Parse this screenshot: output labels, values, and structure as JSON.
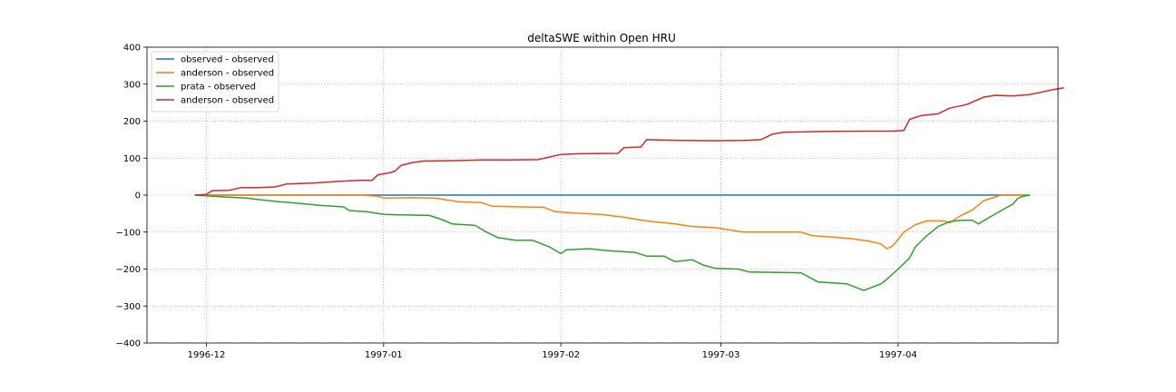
{
  "chart_data": {
    "type": "line",
    "title": "deltaSWE within Open HRU",
    "xlabel": "",
    "ylabel": "",
    "x_axis": {
      "type": "date",
      "range": [
        "1996-11-18",
        "1997-04-30"
      ],
      "ticks": [
        "1996-12-01",
        "1997-01-01",
        "1997-02-01",
        "1997-03-01",
        "1997-04-01"
      ],
      "tick_labels": [
        "1996-12",
        "1997-01",
        "1997-02",
        "1997-03",
        "1997-04"
      ]
    },
    "ylim": [
      -400,
      400
    ],
    "y_ticks": [
      -400,
      -300,
      -200,
      -100,
      0,
      100,
      200,
      300,
      400
    ],
    "y_tick_labels": [
      "−400",
      "−300",
      "−200",
      "−100",
      "0",
      "100",
      "200",
      "300",
      "400"
    ],
    "grid": true,
    "legend_position": "top-left",
    "series": [
      {
        "name": "observed - observed",
        "color": "#1f77b4",
        "points": [
          [
            "1996-11-29",
            0
          ],
          [
            "1997-04-23",
            0
          ]
        ]
      },
      {
        "name": "anderson - observed",
        "color": "#ff7f0e",
        "points": [
          [
            "1996-11-29",
            0
          ],
          [
            "1996-12-20",
            0
          ],
          [
            "1996-12-28",
            0
          ],
          [
            "1996-12-31",
            -3
          ],
          [
            "1997-01-01",
            -8
          ],
          [
            "1997-01-06",
            -7
          ],
          [
            "1997-01-10",
            -8
          ],
          [
            "1997-01-14",
            -18
          ],
          [
            "1997-01-18",
            -20
          ],
          [
            "1997-01-20",
            -30
          ],
          [
            "1997-01-25",
            -32
          ],
          [
            "1997-01-29",
            -33
          ],
          [
            "1997-01-31",
            -45
          ],
          [
            "1997-02-03",
            -48
          ],
          [
            "1997-02-08",
            -52
          ],
          [
            "1997-02-12",
            -60
          ],
          [
            "1997-02-16",
            -70
          ],
          [
            "1997-02-21",
            -78
          ],
          [
            "1997-02-24",
            -85
          ],
          [
            "1997-02-28",
            -88
          ],
          [
            "1997-03-02",
            -93
          ],
          [
            "1997-03-05",
            -100
          ],
          [
            "1997-03-15",
            -100
          ],
          [
            "1997-03-17",
            -110
          ],
          [
            "1997-03-20",
            -113
          ],
          [
            "1997-03-24",
            -118
          ],
          [
            "1997-03-27",
            -125
          ],
          [
            "1997-03-29",
            -132
          ],
          [
            "1997-03-30",
            -145
          ],
          [
            "1997-03-31",
            -138
          ],
          [
            "1997-04-01",
            -120
          ],
          [
            "1997-04-02",
            -100
          ],
          [
            "1997-04-04",
            -80
          ],
          [
            "1997-04-06",
            -70
          ],
          [
            "1997-04-09",
            -70
          ],
          [
            "1997-04-10",
            -75
          ],
          [
            "1997-04-12",
            -55
          ],
          [
            "1997-04-14",
            -40
          ],
          [
            "1997-04-16",
            -15
          ],
          [
            "1997-04-18",
            -5
          ],
          [
            "1997-04-19",
            0
          ],
          [
            "1997-04-23",
            0
          ]
        ]
      },
      {
        "name": "prata - observed",
        "color": "#2ca02c",
        "points": [
          [
            "1996-11-29",
            0
          ],
          [
            "1996-12-01",
            -2
          ],
          [
            "1996-12-04",
            -5
          ],
          [
            "1996-12-08",
            -8
          ],
          [
            "1996-12-10",
            -12
          ],
          [
            "1996-12-13",
            -17
          ],
          [
            "1996-12-17",
            -22
          ],
          [
            "1996-12-21",
            -28
          ],
          [
            "1996-12-25",
            -32
          ],
          [
            "1996-12-26",
            -42
          ],
          [
            "1996-12-29",
            -45
          ],
          [
            "1997-01-01",
            -52
          ],
          [
            "1997-01-03",
            -53
          ],
          [
            "1997-01-09",
            -55
          ],
          [
            "1997-01-11",
            -65
          ],
          [
            "1997-01-13",
            -78
          ],
          [
            "1997-01-17",
            -82
          ],
          [
            "1997-01-19",
            -100
          ],
          [
            "1997-01-21",
            -115
          ],
          [
            "1997-01-24",
            -122
          ],
          [
            "1997-01-27",
            -122
          ],
          [
            "1997-01-30",
            -140
          ],
          [
            "1997-02-01",
            -158
          ],
          [
            "1997-02-02",
            -148
          ],
          [
            "1997-02-06",
            -145
          ],
          [
            "1997-02-09",
            -150
          ],
          [
            "1997-02-14",
            -155
          ],
          [
            "1997-02-16",
            -165
          ],
          [
            "1997-02-19",
            -165
          ],
          [
            "1997-02-21",
            -180
          ],
          [
            "1997-02-24",
            -175
          ],
          [
            "1997-02-26",
            -190
          ],
          [
            "1997-02-28",
            -198
          ],
          [
            "1997-03-04",
            -200
          ],
          [
            "1997-03-06",
            -208
          ],
          [
            "1997-03-15",
            -210
          ],
          [
            "1997-03-18",
            -235
          ],
          [
            "1997-03-23",
            -240
          ],
          [
            "1997-03-26",
            -258
          ],
          [
            "1997-03-29",
            -240
          ],
          [
            "1997-03-30",
            -228
          ],
          [
            "1997-04-01",
            -200
          ],
          [
            "1997-04-03",
            -170
          ],
          [
            "1997-04-04",
            -140
          ],
          [
            "1997-04-06",
            -110
          ],
          [
            "1997-04-08",
            -85
          ],
          [
            "1997-04-10",
            -72
          ],
          [
            "1997-04-12",
            -68
          ],
          [
            "1997-04-14",
            -68
          ],
          [
            "1997-04-15",
            -78
          ],
          [
            "1997-04-17",
            -60
          ],
          [
            "1997-04-19",
            -42
          ],
          [
            "1997-04-21",
            -25
          ],
          [
            "1997-04-22",
            -8
          ],
          [
            "1997-04-23",
            -3
          ],
          [
            "1997-04-24",
            0
          ],
          [
            "1997-04-23",
            0
          ]
        ]
      },
      {
        "name": "anderson - observed",
        "color": "#d62728",
        "points": [
          [
            "1996-11-29",
            0
          ],
          [
            "1996-12-01",
            2
          ],
          [
            "1996-12-02",
            12
          ],
          [
            "1996-12-05",
            13
          ],
          [
            "1996-12-07",
            20
          ],
          [
            "1996-12-10",
            20
          ],
          [
            "1996-12-13",
            22
          ],
          [
            "1996-12-15",
            30
          ],
          [
            "1996-12-20",
            33
          ],
          [
            "1996-12-24",
            37
          ],
          [
            "1996-12-28",
            40
          ],
          [
            "1996-12-30",
            40
          ],
          [
            "1996-12-31",
            55
          ],
          [
            "1997-01-02",
            60
          ],
          [
            "1997-01-03",
            65
          ],
          [
            "1997-01-04",
            80
          ],
          [
            "1997-01-06",
            88
          ],
          [
            "1997-01-08",
            92
          ],
          [
            "1997-01-13",
            93
          ],
          [
            "1997-01-18",
            95
          ],
          [
            "1997-01-23",
            95
          ],
          [
            "1997-01-28",
            96
          ],
          [
            "1997-02-01",
            110
          ],
          [
            "1997-02-04",
            112
          ],
          [
            "1997-02-11",
            113
          ],
          [
            "1997-02-12",
            128
          ],
          [
            "1997-02-15",
            130
          ],
          [
            "1997-02-16",
            150
          ],
          [
            "1997-02-22",
            148
          ],
          [
            "1997-02-28",
            147
          ],
          [
            "1997-03-05",
            148
          ],
          [
            "1997-03-08",
            150
          ],
          [
            "1997-03-10",
            165
          ],
          [
            "1997-03-12",
            170
          ],
          [
            "1997-03-19",
            172
          ],
          [
            "1997-03-26",
            173
          ],
          [
            "1997-03-31",
            173
          ],
          [
            "1997-04-02",
            175
          ],
          [
            "1997-04-03",
            205
          ],
          [
            "1997-04-05",
            215
          ],
          [
            "1997-04-08",
            220
          ],
          [
            "1997-04-10",
            235
          ],
          [
            "1997-04-13",
            245
          ],
          [
            "1997-04-16",
            265
          ],
          [
            "1997-04-18",
            270
          ],
          [
            "1997-04-21",
            268
          ],
          [
            "1997-04-24",
            272
          ],
          [
            "1997-04-26",
            278
          ],
          [
            "1997-04-28",
            285
          ],
          [
            "1997-04-30",
            290
          ]
        ]
      }
    ]
  }
}
